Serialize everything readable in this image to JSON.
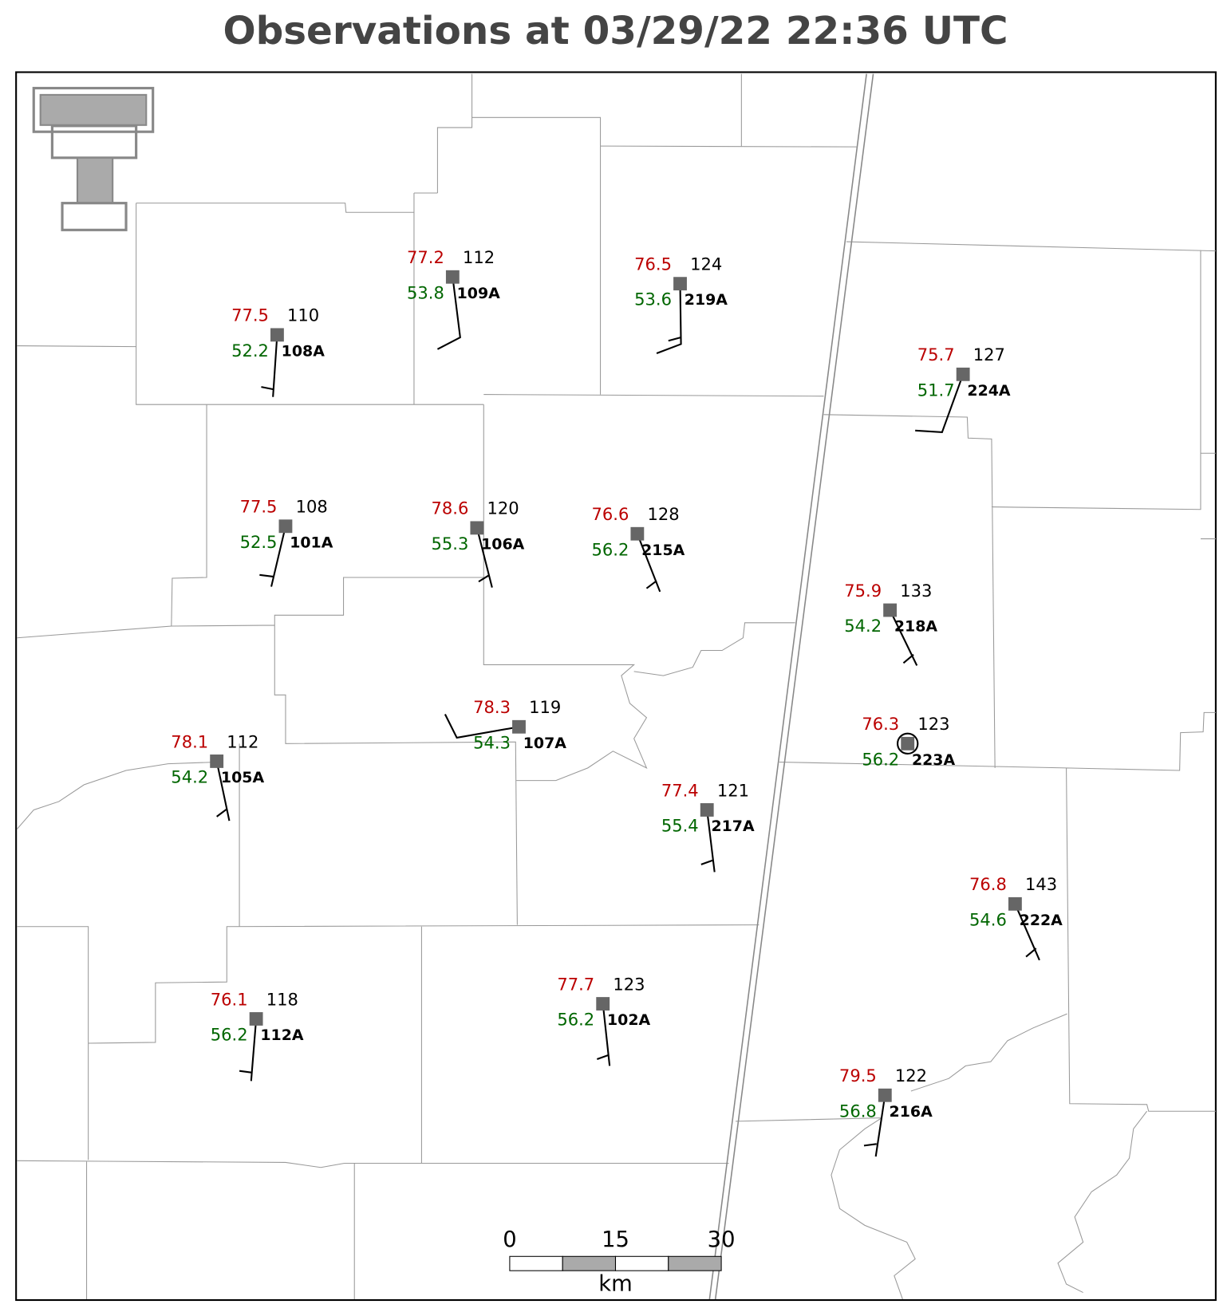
{
  "title": "Observations at 03/29/22 22:36 UTC",
  "stations": [
    {
      "temperature": 77.5,
      "dewpoint": 52.2,
      "value": 110,
      "id": "108A"
    },
    {
      "temperature": 77.2,
      "dewpoint": 53.8,
      "value": 112,
      "id": "109A"
    },
    {
      "temperature": 76.5,
      "dewpoint": 53.6,
      "value": 124,
      "id": "219A"
    },
    {
      "temperature": 75.7,
      "dewpoint": 51.7,
      "value": 127,
      "id": "224A"
    },
    {
      "temperature": 77.5,
      "dewpoint": 52.5,
      "value": 108,
      "id": "101A"
    },
    {
      "temperature": 78.6,
      "dewpoint": 55.3,
      "value": 120,
      "id": "106A"
    },
    {
      "temperature": 76.6,
      "dewpoint": 56.2,
      "value": 128,
      "id": "215A"
    },
    {
      "temperature": 75.9,
      "dewpoint": 54.2,
      "value": 133,
      "id": "218A"
    },
    {
      "temperature": 78.3,
      "dewpoint": 54.3,
      "value": 119,
      "id": "107A"
    },
    {
      "temperature": 76.3,
      "dewpoint": 56.2,
      "value": 123,
      "id": "223A"
    },
    {
      "temperature": 78.1,
      "dewpoint": 54.2,
      "value": 112,
      "id": "105A"
    },
    {
      "temperature": 77.4,
      "dewpoint": 55.4,
      "value": 121,
      "id": "217A"
    },
    {
      "temperature": 76.8,
      "dewpoint": 54.6,
      "value": 143,
      "id": "222A"
    },
    {
      "temperature": 76.1,
      "dewpoint": 56.2,
      "value": 118,
      "id": "112A"
    },
    {
      "temperature": 77.7,
      "dewpoint": 56.2,
      "value": 123,
      "id": "102A"
    },
    {
      "temperature": 79.5,
      "dewpoint": 56.8,
      "value": 122,
      "id": "216A"
    }
  ],
  "scale_bar": {
    "ticks": [
      "0",
      "15",
      "30"
    ],
    "unit": "km"
  }
}
